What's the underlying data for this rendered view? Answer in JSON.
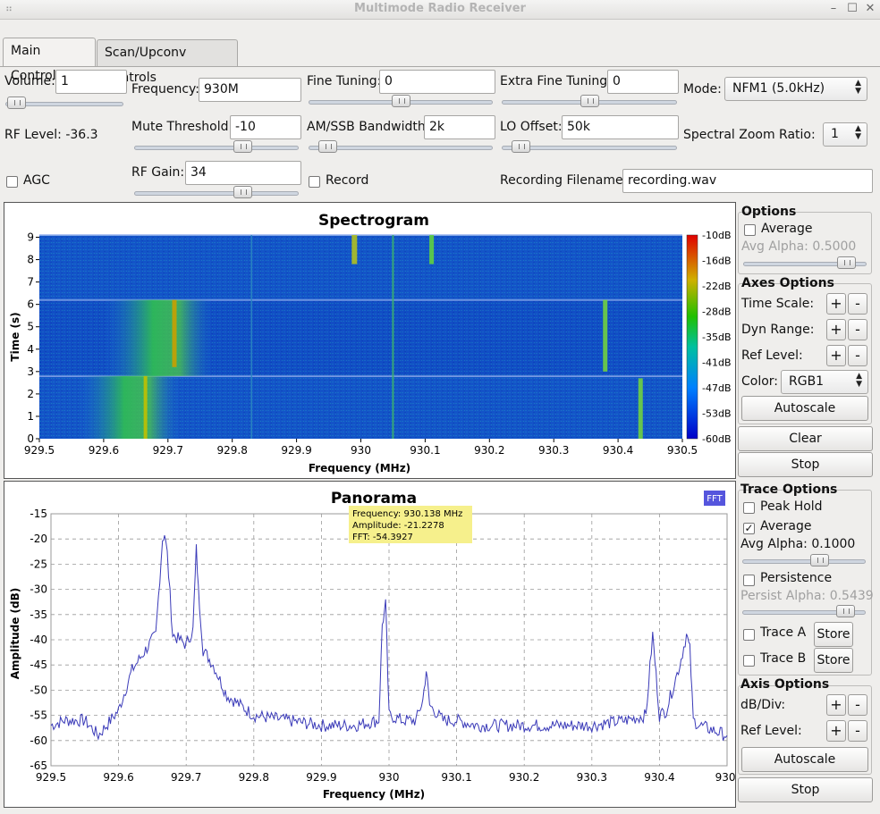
{
  "window": {
    "title": "Multimode Radio Receiver"
  },
  "tabs": [
    "Main Controls",
    "Scan/Upconv Controls"
  ],
  "controls": {
    "volume_label": "Volume:",
    "volume_value": "1",
    "volume_level": 0.02,
    "rf_level": "RF Level: -36.3",
    "agc_label": "AGC",
    "frequency_label": "Frequency:",
    "frequency_value": "930M",
    "mute_label": "Mute Threshold:",
    "mute_value": "-10",
    "mute_level": 0.68,
    "rfgain_label": "RF Gain:",
    "rfgain_value": "34",
    "rfgain_level": 0.68,
    "fine_label": "Fine Tuning:",
    "fine_value": "0",
    "fine_level": 0.5,
    "amssb_label": "AM/SSB Bandwidth:",
    "amssb_value": "2k",
    "amssb_level": 0.06,
    "record_label": "Record",
    "extrafine_label": "Extra Fine Tuning:",
    "extrafine_value": "0",
    "extrafine_level": 0.5,
    "lo_label": "LO Offset:",
    "lo_value": "50k",
    "lo_level": 0.06,
    "recfile_label": "Recording Filename:",
    "recfile_value": "recording.wav",
    "mode_label": "Mode:",
    "mode_value": "NFM1 (5.0kHz)",
    "zoom_label": "Spectral Zoom Ratio:",
    "zoom_value": "1"
  },
  "spectrogram": {
    "title": "Spectrogram",
    "xlabel": "Frequency (MHz)",
    "ylabel": "Time (s)",
    "xticks": [
      "929.5",
      "929.6",
      "929.7",
      "929.8",
      "929.9",
      "930",
      "930.1",
      "930.2",
      "930.3",
      "930.4",
      "930.5"
    ],
    "yticks": [
      "0",
      "1",
      "2",
      "3",
      "4",
      "5",
      "6",
      "7",
      "8",
      "9"
    ],
    "colorbar": [
      "-10dB",
      "-16dB",
      "-22dB",
      "-28dB",
      "-35dB",
      "-41dB",
      "-47dB",
      "-53dB",
      "-60dB"
    ]
  },
  "spec_side": {
    "options_head": "Options",
    "average": "Average",
    "avg_alpha": "Avg Alpha: 0.5000",
    "avg_alpha_level": 0.9,
    "axes_head": "Axes Options",
    "time_scale": "Time Scale:",
    "dyn_range": "Dyn Range:",
    "ref_level": "Ref Level:",
    "color_label": "Color:",
    "color_value": "RGB1",
    "autoscale": "Autoscale",
    "clear": "Clear",
    "stop": "Stop",
    "plus": "+",
    "minus": "-"
  },
  "panorama": {
    "title": "Panorama",
    "fft_badge": "FFT",
    "tooltip": [
      "Frequency: 930.138 MHz",
      "Amplitude: -21.2278",
      "FFT: -54.3927"
    ],
    "line_color": "#3a3ab8",
    "chart_data": {
      "type": "line",
      "title": "Panorama",
      "xlabel": "Frequency (MHz)",
      "ylabel": "Amplitude (dB)",
      "xlim": [
        929.5,
        930.5
      ],
      "ylim": [
        -65,
        -15
      ],
      "xticks": [
        "929.5",
        "929.6",
        "929.7",
        "929.8",
        "929.9",
        "930",
        "930.1",
        "930.2",
        "930.3",
        "930.4",
        "930."
      ],
      "yticks": [
        "-15",
        "-20",
        "-25",
        "-30",
        "-35",
        "-40",
        "-45",
        "-50",
        "-55",
        "-60",
        "-65"
      ],
      "x": [
        929.5,
        929.52,
        929.55,
        929.57,
        929.6,
        929.62,
        929.64,
        929.655,
        929.665,
        929.668,
        929.672,
        929.68,
        929.69,
        929.7,
        929.71,
        929.715,
        929.718,
        929.725,
        929.74,
        929.76,
        929.78,
        929.8,
        929.85,
        929.9,
        929.95,
        929.985,
        929.99,
        929.995,
        930.0,
        930.02,
        930.04,
        930.05,
        930.055,
        930.06,
        930.08,
        930.1,
        930.13,
        930.16,
        930.2,
        930.25,
        930.3,
        930.35,
        930.38,
        930.39,
        930.395,
        930.4,
        930.41,
        930.43,
        930.44,
        930.445,
        930.45,
        930.46,
        930.48,
        930.5
      ],
      "y": [
        -57,
        -56,
        -56,
        -59,
        -54,
        -46,
        -42,
        -39,
        -20,
        -19,
        -23,
        -39,
        -40,
        -41,
        -38,
        -22,
        -30,
        -42,
        -45,
        -51,
        -53,
        -55,
        -56,
        -57,
        -57,
        -56,
        -37,
        -33,
        -55,
        -56,
        -56,
        -52,
        -46,
        -53,
        -56,
        -56,
        -57,
        -57,
        -57,
        -57,
        -57,
        -56,
        -55,
        -39,
        -47,
        -55,
        -54,
        -45,
        -39,
        -42,
        -56,
        -57,
        -58,
        -59
      ]
    }
  },
  "pan_side": {
    "trace_head": "Trace Options",
    "peak_hold": "Peak Hold",
    "average": "Average",
    "avg_alpha": "Avg Alpha: 0.1000",
    "avg_alpha_level": 0.65,
    "persistence": "Persistence",
    "persist_alpha": "Persist Alpha: 0.5439",
    "persist_alpha_level": 0.9,
    "trace_a": "Trace A",
    "trace_b": "Trace B",
    "store": "Store",
    "axis_head": "Axis Options",
    "db_div": "dB/Div:",
    "ref_level": "Ref Level:",
    "autoscale": "Autoscale",
    "stop": "Stop",
    "plus": "+",
    "minus": "-"
  }
}
